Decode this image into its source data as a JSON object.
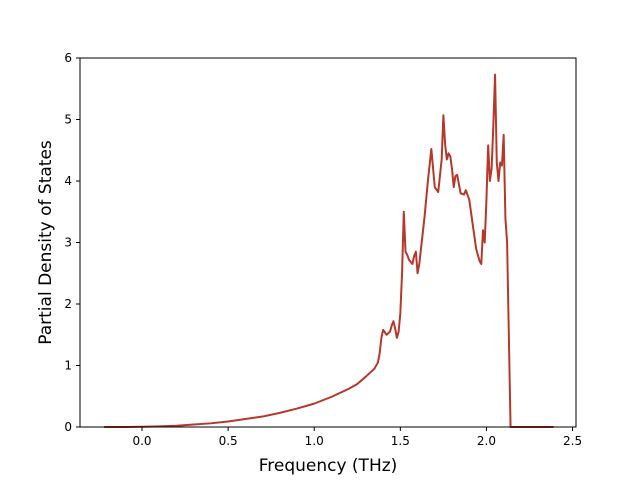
{
  "chart_data": {
    "type": "line",
    "title": "",
    "xlabel": "Frequency (THz)",
    "ylabel": "Partial Density of States",
    "xlim": [
      -0.36,
      2.52
    ],
    "ylim": [
      0,
      6
    ],
    "xticks": [
      "0.0",
      "0.5",
      "1.0",
      "1.5",
      "2.0",
      "2.5"
    ],
    "yticks": [
      "0",
      "1",
      "2",
      "3",
      "4",
      "5",
      "6"
    ],
    "grid": false,
    "series": [
      {
        "color": "#b5382b",
        "x": [
          -0.22,
          -0.1,
          0.0,
          0.1,
          0.2,
          0.3,
          0.4,
          0.5,
          0.6,
          0.7,
          0.8,
          0.9,
          1.0,
          1.1,
          1.2,
          1.25,
          1.3,
          1.35,
          1.37,
          1.38,
          1.39,
          1.4,
          1.42,
          1.44,
          1.45,
          1.46,
          1.47,
          1.48,
          1.49,
          1.5,
          1.51,
          1.52,
          1.53,
          1.54,
          1.55,
          1.57,
          1.58,
          1.59,
          1.6,
          1.61,
          1.62,
          1.64,
          1.66,
          1.68,
          1.7,
          1.72,
          1.74,
          1.75,
          1.76,
          1.77,
          1.78,
          1.79,
          1.8,
          1.81,
          1.82,
          1.83,
          1.84,
          1.85,
          1.87,
          1.88,
          1.9,
          1.92,
          1.94,
          1.96,
          1.97,
          1.98,
          1.99,
          2.0,
          2.01,
          2.02,
          2.03,
          2.04,
          2.05,
          2.06,
          2.07,
          2.08,
          2.09,
          2.1,
          2.11,
          2.12,
          2.13,
          2.14,
          2.15,
          2.16,
          2.17,
          2.18,
          2.2,
          2.3,
          2.39
        ],
        "y": [
          0.0,
          0.0,
          0.005,
          0.01,
          0.02,
          0.04,
          0.06,
          0.09,
          0.13,
          0.17,
          0.23,
          0.3,
          0.38,
          0.49,
          0.62,
          0.7,
          0.82,
          0.95,
          1.05,
          1.2,
          1.45,
          1.58,
          1.5,
          1.55,
          1.65,
          1.72,
          1.6,
          1.45,
          1.55,
          1.85,
          2.5,
          3.5,
          2.85,
          2.8,
          2.72,
          2.65,
          2.78,
          2.85,
          2.5,
          2.65,
          2.9,
          3.4,
          4.0,
          4.52,
          3.9,
          3.82,
          4.35,
          5.07,
          4.6,
          4.35,
          4.45,
          4.4,
          4.2,
          3.9,
          4.08,
          4.1,
          3.95,
          3.8,
          3.78,
          3.85,
          3.7,
          3.3,
          2.9,
          2.7,
          2.65,
          3.2,
          3.0,
          3.7,
          4.58,
          4.0,
          4.2,
          4.9,
          5.73,
          4.3,
          4.0,
          4.3,
          4.25,
          4.75,
          3.4,
          3.0,
          1.5,
          0.0,
          0.0,
          0.0,
          0.0,
          0.0,
          0.0,
          0.0,
          0.0
        ]
      }
    ]
  }
}
